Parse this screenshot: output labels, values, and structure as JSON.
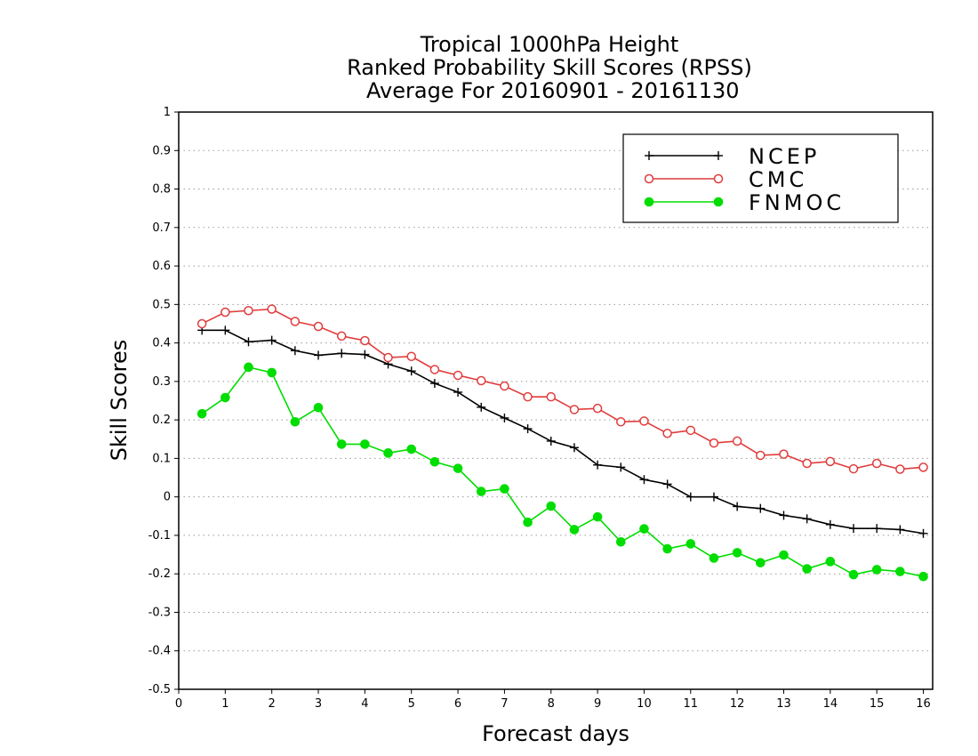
{
  "chart_data": {
    "type": "line",
    "title": [
      "Tropical 1000hPa Height",
      "Ranked Probability Skill Scores (RPSS)",
      " Average For 20160901 - 20161130"
    ],
    "xlabel": "Forecast days",
    "ylabel": "Skill Scores",
    "xlim": [
      0,
      16.2
    ],
    "ylim": [
      -0.5,
      1
    ],
    "x_ticks": [
      0,
      1,
      2,
      3,
      4,
      5,
      6,
      7,
      8,
      9,
      10,
      11,
      12,
      13,
      14,
      15,
      16
    ],
    "y_ticks": [
      -0.5,
      -0.4,
      -0.3,
      -0.2,
      -0.1,
      0,
      0.1,
      0.2,
      0.3,
      0.4,
      0.5,
      0.6,
      0.7,
      0.8,
      0.9,
      1
    ],
    "grid": "horizontal dotted",
    "legend_position": "top-right",
    "x": [
      0.5,
      1.0,
      1.5,
      2.0,
      2.5,
      3.0,
      3.5,
      4.0,
      4.5,
      5.0,
      5.5,
      6.0,
      6.5,
      7.0,
      7.5,
      8.0,
      8.5,
      9.0,
      9.5,
      10.0,
      10.5,
      11.0,
      11.5,
      12.0,
      12.5,
      13.0,
      13.5,
      14.0,
      14.5,
      15.0,
      15.5,
      16.0
    ],
    "series": [
      {
        "name": "NCEP",
        "color": "#000000",
        "marker": "plus",
        "values": [
          0.433,
          0.433,
          0.403,
          0.407,
          0.38,
          0.368,
          0.373,
          0.37,
          0.345,
          0.327,
          0.295,
          0.272,
          0.233,
          0.205,
          0.177,
          0.145,
          0.128,
          0.083,
          0.077,
          0.045,
          0.033,
          0.0,
          0.0,
          -0.025,
          -0.03,
          -0.048,
          -0.057,
          -0.072,
          -0.082,
          -0.082,
          -0.085,
          -0.095
        ]
      },
      {
        "name": "CMC",
        "color": "#e03c3c",
        "marker": "open-circle",
        "values": [
          0.45,
          0.48,
          0.484,
          0.488,
          0.456,
          0.443,
          0.418,
          0.406,
          0.362,
          0.365,
          0.331,
          0.316,
          0.302,
          0.288,
          0.26,
          0.26,
          0.227,
          0.23,
          0.195,
          0.197,
          0.165,
          0.173,
          0.14,
          0.145,
          0.108,
          0.111,
          0.087,
          0.092,
          0.073,
          0.087,
          0.072,
          0.077
        ]
      },
      {
        "name": "FNMOC",
        "color": "#00dd00",
        "marker": "filled-circle",
        "values": [
          0.216,
          0.258,
          0.337,
          0.323,
          0.195,
          0.232,
          0.137,
          0.137,
          0.114,
          0.124,
          0.091,
          0.074,
          0.014,
          0.021,
          -0.066,
          -0.024,
          -0.085,
          -0.052,
          -0.117,
          -0.083,
          -0.135,
          -0.122,
          -0.159,
          -0.145,
          -0.171,
          -0.151,
          -0.187,
          -0.168,
          -0.202,
          -0.189,
          -0.194,
          -0.207
        ]
      }
    ]
  }
}
